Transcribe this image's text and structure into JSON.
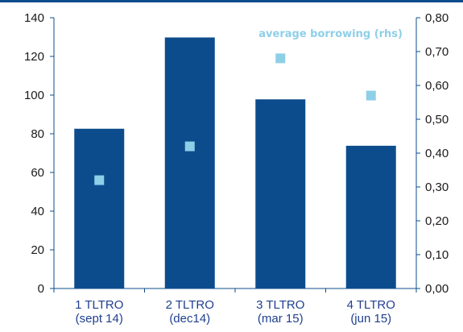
{
  "colors": {
    "bar": "#0d4c8c",
    "marker": "#8ecfe8",
    "axis": "#0d4c8c",
    "top_rule": "#0d4c8c"
  },
  "chart_data": {
    "type": "bar",
    "title": "",
    "categories": [
      [
        "1 TLTRO",
        "(sept 14)"
      ],
      [
        "2 TLTRO",
        "(dec14)"
      ],
      [
        "3 TLTRO",
        "(mar 15)"
      ],
      [
        "4 TLTRO",
        "(jun 15)"
      ]
    ],
    "series": [
      {
        "name": "",
        "kind": "bar",
        "axis": "left",
        "values": [
          82.6,
          129.8,
          97.8,
          73.8
        ]
      },
      {
        "name": "average borrowing (rhs)",
        "kind": "marker",
        "axis": "right",
        "values": [
          0.32,
          0.42,
          0.68,
          0.57
        ]
      }
    ],
    "ylim_left": [
      0,
      140
    ],
    "yticks_left": [
      "0",
      "20",
      "40",
      "60",
      "80",
      "100",
      "120",
      "140"
    ],
    "ylim_right": [
      0,
      0.8
    ],
    "yticks_right": [
      "0,00",
      "0,10",
      "0,20",
      "0,30",
      "0,40",
      "0,50",
      "0,60",
      "0,70",
      "0,80"
    ],
    "legend": "top-right",
    "grid": false
  }
}
